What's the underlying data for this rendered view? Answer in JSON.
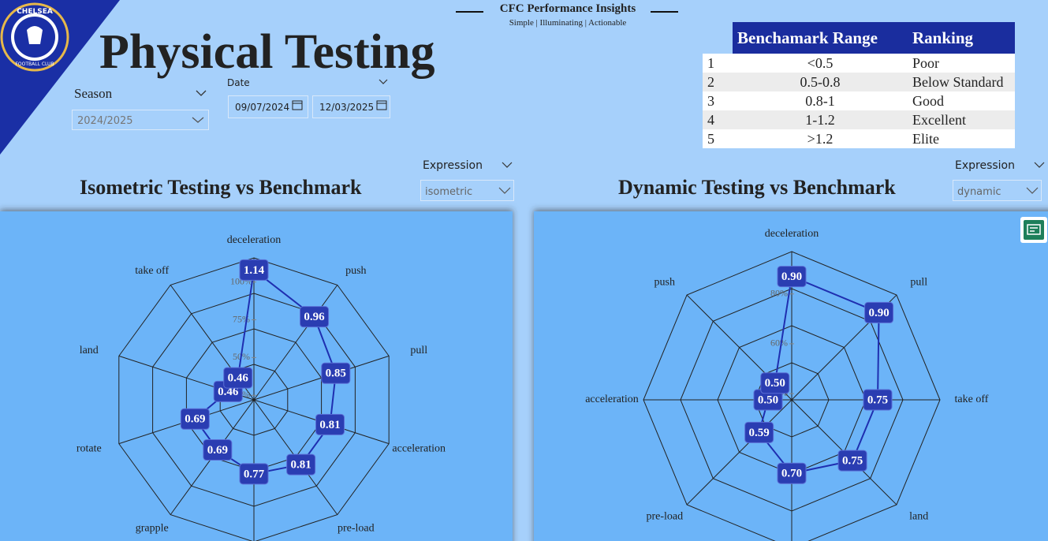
{
  "logo": {
    "top": "CHELSEA",
    "bottom": "FOOTBALL CLUB"
  },
  "header": {
    "brand": "CFC Performance Insights",
    "tagline": "Simple | Illuminating | Actionable",
    "title": "Physical Testing"
  },
  "filters": {
    "season": {
      "label": "Season",
      "value": "2024/2025"
    },
    "date": {
      "label": "Date",
      "start": "09/07/2024",
      "end": "12/03/2025"
    }
  },
  "expression_filters": [
    {
      "label": "Expression",
      "value": "isometric"
    },
    {
      "label": "Expression",
      "value": "dynamic"
    }
  ],
  "table": {
    "columns": [
      "Benchamark Range",
      "Ranking"
    ],
    "rows": [
      [
        "1",
        "<0.5",
        "Poor"
      ],
      [
        "2",
        "0.5-0.8",
        "Below Standard"
      ],
      [
        "3",
        "0.8-1",
        "Good"
      ],
      [
        "4",
        "1-1.2",
        "Excellent"
      ],
      [
        "5",
        ">1.2",
        "Elite"
      ]
    ]
  },
  "chart_data": [
    {
      "type": "radar",
      "title": "Isometric Testing vs Benchmark",
      "categories": [
        "deceleration",
        "push",
        "pull",
        "acceleration",
        "pre-load",
        null,
        "grapple",
        "rotate",
        "land",
        "take off"
      ],
      "values": [
        1.14,
        0.96,
        0.85,
        0.81,
        0.81,
        0.77,
        0.69,
        0.69,
        0.46,
        0.46
      ],
      "color": "#1f2fb0",
      "rlim": [
        0.28,
        1.22
      ],
      "rticks": [
        {
          "value": 0.31,
          "label": "25%"
        },
        {
          "value": 0.56,
          "label": "50%"
        },
        {
          "value": 0.81,
          "label": "75%"
        },
        {
          "value": 1.06,
          "label": "100%"
        }
      ]
    },
    {
      "type": "radar",
      "title": "Dynamic Testing vs Benchmark",
      "categories": [
        "deceleration",
        "pull",
        "take off",
        "land",
        null,
        "pre-load",
        "acceleration",
        "push"
      ],
      "values": [
        0.9,
        0.9,
        0.75,
        0.75,
        0.7,
        0.59,
        0.5,
        0.5
      ],
      "value_labels": [
        "0.90",
        "0.90",
        "0.75",
        "0.75",
        "0.70",
        "0.59",
        "0.50",
        "0.50"
      ],
      "color": "#1f2fb0",
      "rlim": [
        0.405,
        1.0
      ],
      "rticks": [
        {
          "value": 0.43,
          "label": "40%"
        },
        {
          "value": 0.63,
          "label": "60%"
        },
        {
          "value": 0.83,
          "label": "80%"
        }
      ]
    }
  ]
}
